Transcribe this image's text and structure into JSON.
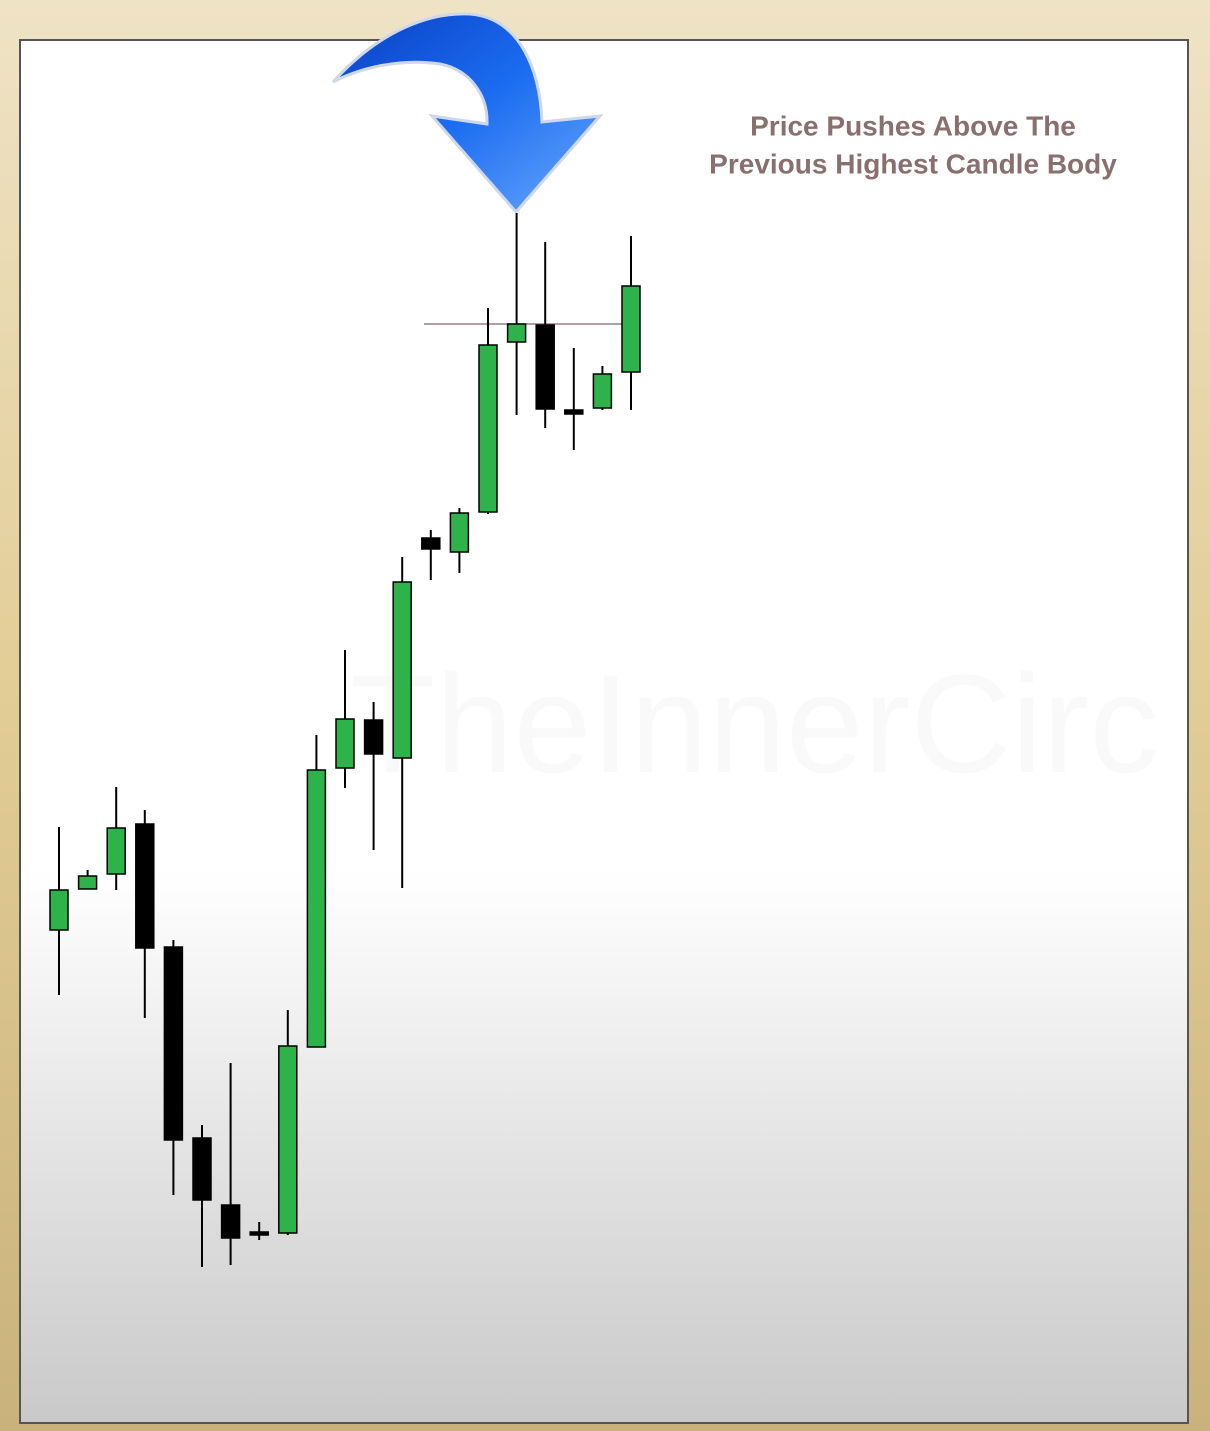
{
  "chart_data": {
    "type": "candlestick",
    "annotation": [
      "Price Pushes Above The",
      "Previous Highest Candle Body"
    ],
    "watermark": "TheInnerCirc",
    "open": [
      490,
      531,
      546,
      596,
      473,
      282,
      215,
      188,
      187,
      373,
      652,
      700,
      662,
      882,
      868,
      908,
      1078,
      1095,
      1010,
      1012,
      1048
    ],
    "high": [
      593,
      550,
      633,
      610,
      480,
      295,
      357,
      198,
      410,
      685,
      770,
      718,
      863,
      890,
      912,
      1112,
      1207,
      1178,
      1072,
      1054,
      1184
    ],
    "low": [
      425,
      531,
      530,
      402,
      225,
      153,
      155,
      180,
      185,
      373,
      632,
      570,
      532,
      840,
      847,
      906,
      1005,
      992,
      970,
      1010,
      1010
    ],
    "close": [
      530,
      544,
      592,
      472,
      280,
      220,
      182,
      185,
      374,
      650,
      701,
      666,
      838,
      871,
      907,
      1075,
      1096,
      1011,
      1006,
      1046,
      1134
    ],
    "up_color": "#2db34a",
    "down_color": "#000000",
    "reference_line": 1096,
    "ylim": [
      0,
      1380
    ]
  }
}
